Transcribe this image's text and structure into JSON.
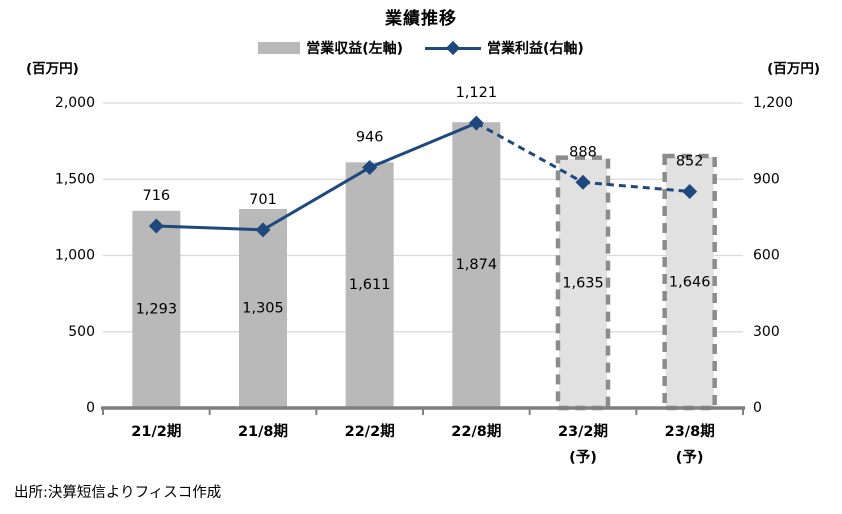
{
  "chart": {
    "title": "業績推移",
    "left_axis_unit": "(百万円)",
    "right_axis_unit": "(百万円)",
    "source": "出所:決算短信よりフィスコ作成"
  },
  "chart_data": {
    "type": "combo-bar-line",
    "title": "業績推移",
    "legend_position": "top",
    "grid": true,
    "categories": [
      {
        "label": "21/2期",
        "sublabel": ""
      },
      {
        "label": "21/8期",
        "sublabel": ""
      },
      {
        "label": "22/2期",
        "sublabel": ""
      },
      {
        "label": "22/8期",
        "sublabel": ""
      },
      {
        "label": "23/2期",
        "sublabel": "(予)"
      },
      {
        "label": "23/8期",
        "sublabel": "(予)"
      }
    ],
    "series": [
      {
        "name": "営業収益(左軸)",
        "type": "bar",
        "axis": "left",
        "values": [
          1293,
          1305,
          1611,
          1874,
          1635,
          1646
        ],
        "labels": [
          "1,293",
          "1,305",
          "1,611",
          "1,874",
          "1,635",
          "1,646"
        ],
        "forecast": [
          false,
          false,
          false,
          false,
          true,
          true
        ]
      },
      {
        "name": "営業利益(右軸)",
        "type": "line",
        "axis": "right",
        "values": [
          716,
          701,
          946,
          1121,
          888,
          852
        ],
        "labels": [
          "716",
          "701",
          "946",
          "1,121",
          "888",
          "852"
        ],
        "forecast": [
          false,
          false,
          false,
          false,
          true,
          true
        ]
      }
    ],
    "left_axis": {
      "unit": "(百万円)",
      "min": 0,
      "max": 2000,
      "ticks": [
        {
          "value": 0,
          "label": "0"
        },
        {
          "value": 500,
          "label": "500"
        },
        {
          "value": 1000,
          "label": "1,000"
        },
        {
          "value": 1500,
          "label": "1,500"
        },
        {
          "value": 2000,
          "label": "2,000"
        }
      ]
    },
    "right_axis": {
      "unit": "(百万円)",
      "min": 0,
      "max": 1200,
      "ticks": [
        {
          "value": 0,
          "label": "0"
        },
        {
          "value": 300,
          "label": "300"
        },
        {
          "value": 600,
          "label": "600"
        },
        {
          "value": 900,
          "label": "900"
        },
        {
          "value": 1200,
          "label": "1,200"
        }
      ]
    },
    "colors": {
      "bar": "#b9b9b9",
      "bar_forecast_fill": "#e1e1e1",
      "bar_forecast_border": "#8c8c8c",
      "line": "#1f497d",
      "grid": "#d9d9d9",
      "axis": "#7f7f7f",
      "text": "#000000"
    },
    "source": "出所:決算短信よりフィスコ作成"
  }
}
